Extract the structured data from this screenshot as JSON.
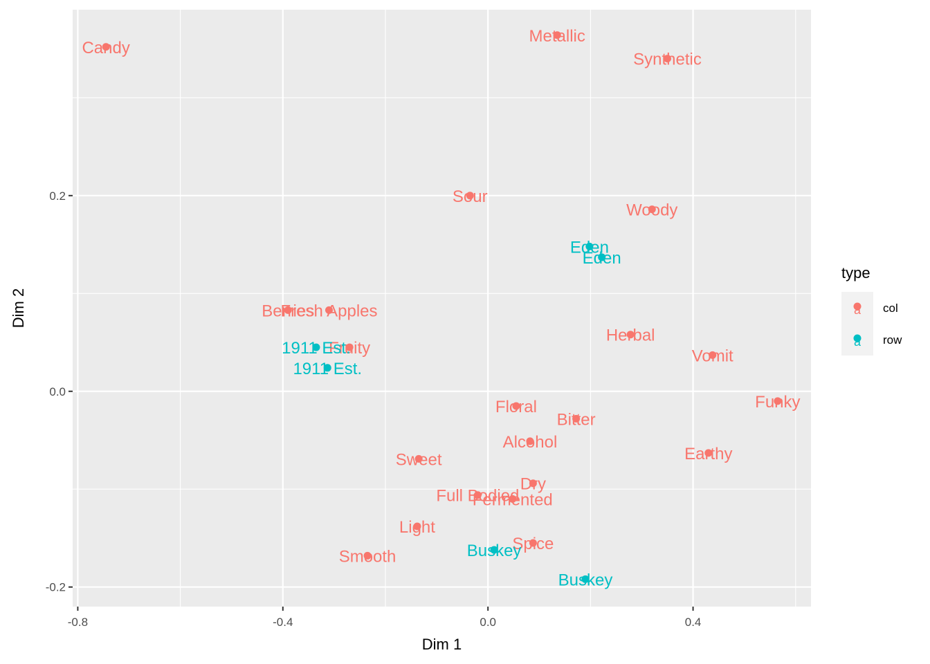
{
  "chart_data": {
    "type": "scatter",
    "xlabel": "Dim 1",
    "ylabel": "Dim 2",
    "xlim": [
      -0.81,
      0.63
    ],
    "ylim": [
      -0.22,
      0.39
    ],
    "x_ticks": [
      -0.8,
      -0.4,
      0.0,
      0.4
    ],
    "x_tick_labels": [
      "-0.8",
      "-0.4",
      "0.0",
      "0.4"
    ],
    "y_ticks": [
      -0.2,
      0.0,
      0.2
    ],
    "y_tick_labels": [
      "-0.2",
      "0.0",
      "0.2"
    ],
    "grid": true,
    "legend": {
      "title": "type",
      "placement": "right",
      "entries": [
        {
          "name": "col",
          "color": "#F8766D",
          "key_glyph": "a"
        },
        {
          "name": "row",
          "color": "#00BFC4",
          "key_glyph": "a"
        }
      ]
    },
    "series": [
      {
        "name": "col",
        "color": "#F8766D",
        "points": [
          {
            "label": "Candy",
            "x": -0.745,
            "y": 0.352
          },
          {
            "label": "Metallic",
            "x": 0.135,
            "y": 0.364
          },
          {
            "label": "Synthetic",
            "x": 0.35,
            "y": 0.34
          },
          {
            "label": "Sour",
            "x": -0.035,
            "y": 0.2
          },
          {
            "label": "Woody",
            "x": 0.32,
            "y": 0.186
          },
          {
            "label": "Berries",
            "x": -0.39,
            "y": 0.083
          },
          {
            "label": "Fresh Apples",
            "x": -0.31,
            "y": 0.083
          },
          {
            "label": "Fruity",
            "x": -0.27,
            "y": 0.045
          },
          {
            "label": "Herbal",
            "x": 0.278,
            "y": 0.058
          },
          {
            "label": "Vomit",
            "x": 0.438,
            "y": 0.037
          },
          {
            "label": "Funky",
            "x": 0.565,
            "y": -0.01
          },
          {
            "label": "Floral",
            "x": 0.055,
            "y": -0.015
          },
          {
            "label": "Bitter",
            "x": 0.172,
            "y": -0.028
          },
          {
            "label": "Alcohol",
            "x": 0.082,
            "y": -0.051
          },
          {
            "label": "Earthy",
            "x": 0.43,
            "y": -0.063
          },
          {
            "label": "Sweet",
            "x": -0.135,
            "y": -0.069
          },
          {
            "label": "Dry",
            "x": 0.088,
            "y": -0.094
          },
          {
            "label": "Full Bodied",
            "x": -0.02,
            "y": -0.106
          },
          {
            "label": "Fermented",
            "x": 0.048,
            "y": -0.11
          },
          {
            "label": "Light",
            "x": -0.138,
            "y": -0.138
          },
          {
            "label": "Spice",
            "x": 0.088,
            "y": -0.155
          },
          {
            "label": "Smooth",
            "x": -0.235,
            "y": -0.168
          }
        ]
      },
      {
        "name": "row",
        "color": "#00BFC4",
        "points": [
          {
            "label": "Eden",
            "x": 0.198,
            "y": 0.148
          },
          {
            "label": "Eden",
            "x": 0.222,
            "y": 0.137
          },
          {
            "label": "1911 Est.",
            "x": -0.335,
            "y": 0.045
          },
          {
            "label": "1911 Est.",
            "x": -0.313,
            "y": 0.024
          },
          {
            "label": "Buskey",
            "x": 0.012,
            "y": -0.162
          },
          {
            "label": "Buskey",
            "x": 0.19,
            "y": -0.192
          }
        ]
      }
    ]
  }
}
